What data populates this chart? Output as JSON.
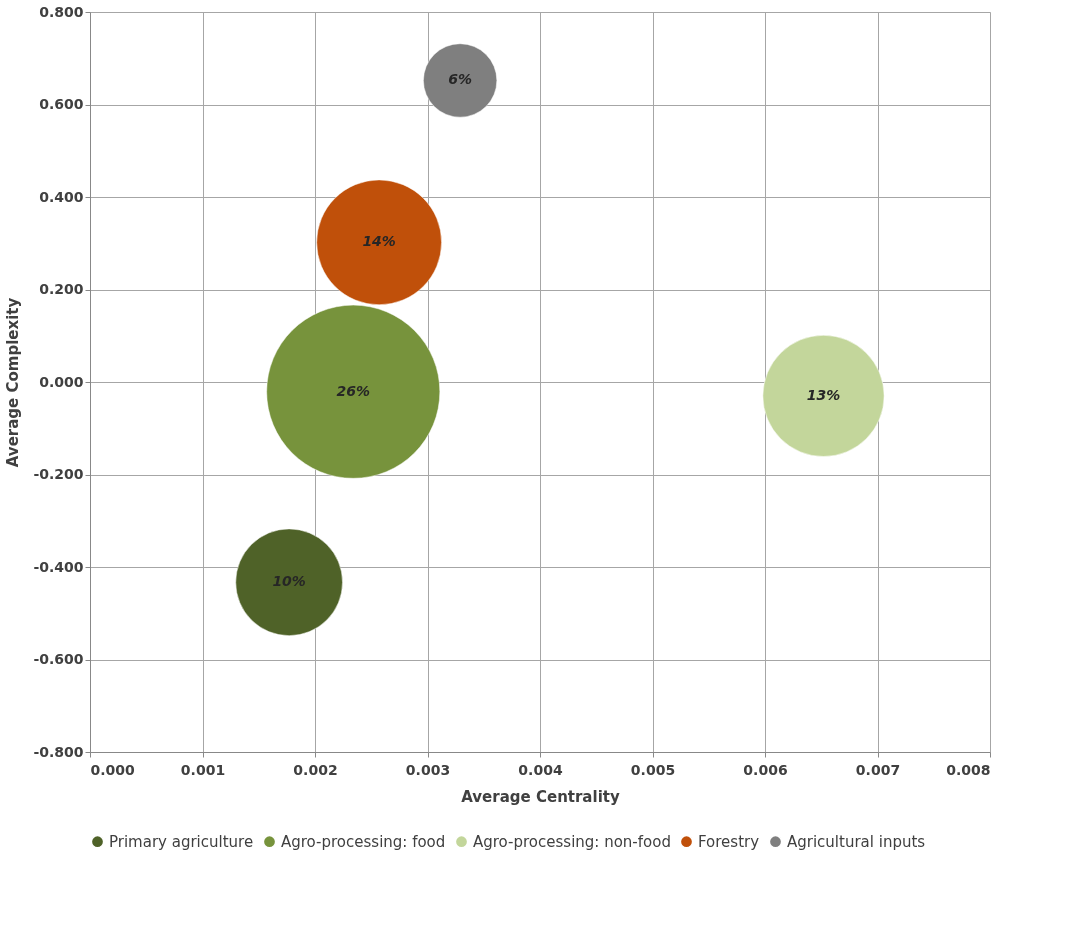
{
  "chart_data": {
    "type": "bubble",
    "xlabel": "Average Centrality",
    "ylabel": "Average Complexity",
    "series": [
      {
        "name": "Primary agriculture",
        "color": "#4f6228",
        "x": [
          0.00177
        ],
        "values": [
          -0.433
        ],
        "sizes": [
          0.38
        ]
      },
      {
        "name": "Agro-processing: food",
        "color": "#77933c",
        "x": [
          0.00234
        ],
        "values": [
          -0.021
        ],
        "sizes": [
          1
        ]
      },
      {
        "name": "Agro-processing: non-food",
        "color": "#c3d69b",
        "x": [
          0.00652
        ],
        "values": [
          -0.03
        ],
        "sizes": [
          0.49
        ]
      },
      {
        "name": "Forestry",
        "color": "#c0500a",
        "x": [
          0.00257
        ],
        "values": [
          0.302
        ],
        "sizes": [
          0.52
        ]
      },
      {
        "name": "Agricultural inputs",
        "color": "#7f7f7f",
        "x": [
          0.00329
        ],
        "values": [
          0.652
        ],
        "sizes": [
          0.18
        ]
      }
    ],
    "annotations": [
      {
        "text": "10%",
        "x": 0.00177,
        "y": -0.433
      },
      {
        "text": "26%",
        "x": 0.00234,
        "y": -0.021
      },
      {
        "text": "13%",
        "x": 0.00652,
        "y": -0.03
      },
      {
        "text": "14%",
        "x": 0.00257,
        "y": 0.302
      },
      {
        "text": "6%",
        "x": 0.00329,
        "y": 0.652
      }
    ],
    "xlim": [
      0,
      0.008
    ],
    "xticks": [
      {
        "value": 0,
        "label": "0.000"
      },
      {
        "value": 0.001,
        "label": "0.001"
      },
      {
        "value": 0.002,
        "label": "0.002"
      },
      {
        "value": 0.003,
        "label": "0.003"
      },
      {
        "value": 0.004,
        "label": "0.004"
      },
      {
        "value": 0.005,
        "label": "0.005"
      },
      {
        "value": 0.006,
        "label": "0.006"
      },
      {
        "value": 0.007,
        "label": "0.007"
      },
      {
        "value": 0.008,
        "label": "0.008"
      }
    ],
    "ylim": [
      -0.8,
      0.8
    ],
    "yticks": [
      {
        "value": -0.8,
        "label": "-0.800"
      },
      {
        "value": -0.6,
        "label": "-0.600"
      },
      {
        "value": -0.4,
        "label": "-0.400"
      },
      {
        "value": -0.2,
        "label": "-0.200"
      },
      {
        "value": 0,
        "label": "0.000"
      },
      {
        "value": 0.2,
        "label": "0.200"
      },
      {
        "value": 0.4,
        "label": "0.400"
      },
      {
        "value": 0.6,
        "label": "0.600"
      },
      {
        "value": 0.8,
        "label": "0.800"
      }
    ],
    "grid": true,
    "legend": "bottom"
  }
}
